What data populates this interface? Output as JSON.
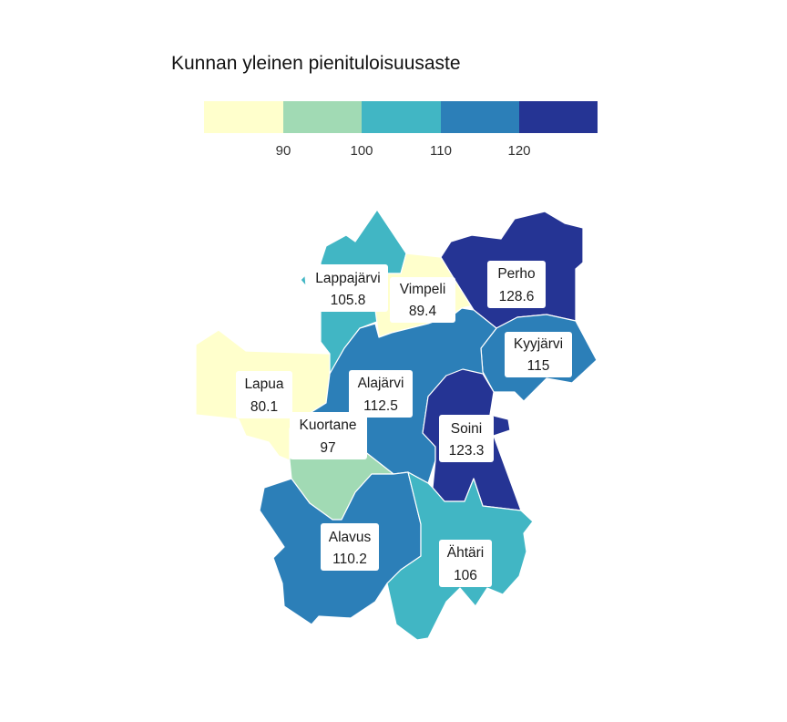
{
  "title": "Kunnan yleinen pienituloisuusaste",
  "legend": {
    "colors": [
      "#ffffcc",
      "#a1dab4",
      "#41b6c4",
      "#2c7fb8",
      "#253494"
    ],
    "breaks": [
      "90",
      "100",
      "110",
      "120"
    ],
    "thresholds": [
      90,
      100,
      110,
      120
    ]
  },
  "municipalities": [
    {
      "id": "lappajarvi",
      "name": "Lappajärvi",
      "value": "105.8"
    },
    {
      "id": "vimpeli",
      "name": "Vimpeli",
      "value": "89.4"
    },
    {
      "id": "perho",
      "name": "Perho",
      "value": "128.6"
    },
    {
      "id": "kyyjarvi",
      "name": "Kyyjärvi",
      "value": "115"
    },
    {
      "id": "lapua",
      "name": "Lapua",
      "value": "80.1"
    },
    {
      "id": "alajarvi",
      "name": "Alajärvi",
      "value": "112.5"
    },
    {
      "id": "kuortane",
      "name": "Kuortane",
      "value": "97"
    },
    {
      "id": "soini",
      "name": "Soini",
      "value": "123.3"
    },
    {
      "id": "alavus",
      "name": "Alavus",
      "value": "110.2"
    },
    {
      "id": "ahtari",
      "name": "Ähtäri",
      "value": "106"
    }
  ]
}
